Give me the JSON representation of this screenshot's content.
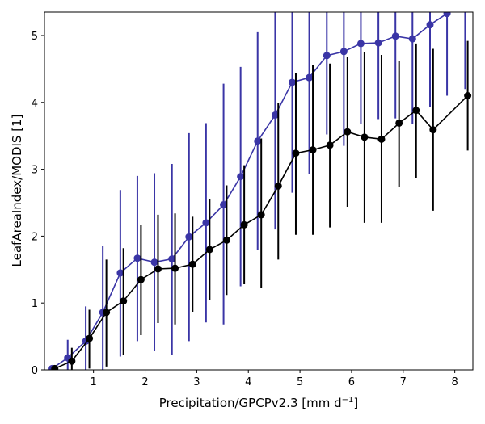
{
  "chart_data": {
    "type": "line",
    "xlabel": "Precipitation/GPCPv2.3 [mm d",
    "xlabel_sup": "−1",
    "xlabel_end": "]",
    "ylabel": "LeafAreaIndex/MODIS [1]",
    "xlim": [
      0.05,
      8.35
    ],
    "ylim": [
      0,
      5.35
    ],
    "xticks": [
      1,
      2,
      3,
      4,
      5,
      6,
      7,
      8
    ],
    "yticks": [
      0,
      1,
      2,
      3,
      4,
      5
    ],
    "grid": false,
    "series": [
      {
        "color": "#3a35a6",
        "x": [
          0.2,
          0.5,
          0.85,
          1.18,
          1.52,
          1.85,
          2.18,
          2.52,
          2.85,
          3.18,
          3.52,
          3.85,
          4.18,
          4.52,
          4.85,
          5.18,
          5.52,
          5.85,
          6.18,
          6.52,
          6.85,
          7.18,
          7.52,
          7.85,
          8.2
        ],
        "y": [
          0.02,
          0.18,
          0.43,
          0.86,
          1.45,
          1.67,
          1.61,
          1.66,
          1.99,
          2.2,
          2.47,
          2.89,
          3.42,
          3.81,
          4.3,
          4.37,
          4.7,
          4.76,
          4.88,
          4.89,
          4.99,
          4.95,
          5.16,
          5.33,
          5.5
        ],
        "err_low": [
          0.0,
          0.0,
          0.0,
          0.0,
          0.2,
          0.43,
          0.28,
          0.23,
          0.43,
          0.71,
          0.68,
          1.25,
          1.79,
          2.1,
          2.65,
          2.93,
          3.52,
          3.35,
          3.68,
          3.75,
          3.76,
          3.68,
          3.93,
          4.1,
          4.2
        ],
        "err_high": [
          0.05,
          0.45,
          0.95,
          1.85,
          2.69,
          2.9,
          2.94,
          3.08,
          3.54,
          3.69,
          4.28,
          4.53,
          5.05,
          5.5,
          5.5,
          5.5,
          5.5,
          5.5,
          5.5,
          5.5,
          5.5,
          5.5,
          5.5,
          5.5,
          5.5
        ]
      },
      {
        "color": "#000000",
        "x": [
          0.25,
          0.58,
          0.92,
          1.25,
          1.58,
          1.92,
          2.25,
          2.58,
          2.92,
          3.25,
          3.58,
          3.92,
          4.25,
          4.58,
          4.92,
          5.25,
          5.58,
          5.92,
          6.25,
          6.58,
          6.92,
          7.25,
          7.58,
          8.25
        ],
        "y": [
          0.02,
          0.13,
          0.47,
          0.86,
          1.03,
          1.35,
          1.51,
          1.52,
          1.58,
          1.8,
          1.94,
          2.17,
          2.32,
          2.75,
          3.24,
          3.29,
          3.36,
          3.56,
          3.48,
          3.45,
          3.69,
          3.88,
          3.59,
          4.1
        ],
        "err_low": [
          0.0,
          0.0,
          0.02,
          0.05,
          0.22,
          0.52,
          0.7,
          0.68,
          0.87,
          1.05,
          1.12,
          1.28,
          1.23,
          1.65,
          2.02,
          2.02,
          2.13,
          2.44,
          2.2,
          2.2,
          2.74,
          2.87,
          2.38,
          3.28
        ],
        "err_high": [
          0.05,
          0.33,
          0.9,
          1.65,
          1.82,
          2.17,
          2.32,
          2.34,
          2.29,
          2.55,
          2.76,
          3.06,
          3.46,
          3.99,
          4.44,
          4.56,
          4.58,
          4.68,
          4.75,
          4.71,
          4.62,
          4.88,
          4.8,
          4.92
        ]
      }
    ]
  }
}
